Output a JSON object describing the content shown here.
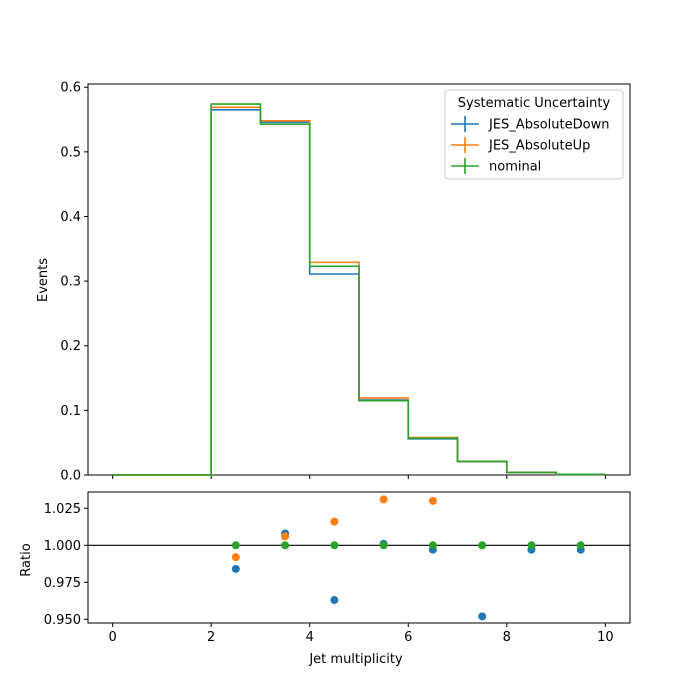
{
  "chart_data": [
    {
      "type": "step",
      "title": "",
      "xlabel": "",
      "ylabel": "Events",
      "xlim": [
        -0.5,
        10.5
      ],
      "ylim": [
        0,
        0.605
      ],
      "xticks": [
        0,
        2,
        4,
        6,
        8,
        10
      ],
      "yticks": [
        0.0,
        0.1,
        0.2,
        0.3,
        0.4,
        0.5,
        0.6
      ],
      "ytick_labels": [
        "0.0",
        "0.1",
        "0.2",
        "0.3",
        "0.4",
        "0.5",
        "0.6"
      ],
      "bin_edges": [
        0,
        1,
        2,
        3,
        4,
        5,
        6,
        7,
        8,
        9,
        10
      ],
      "legend": {
        "title": "Systematic Uncertainty",
        "placement": "top-right"
      },
      "series": [
        {
          "name": "JES_AbsoluteDown",
          "color": "#1f77b4",
          "values": [
            0,
            0,
            0.565,
            0.546,
            0.311,
            0.116,
            0.056,
            0.021,
            0.004,
            0.001
          ]
        },
        {
          "name": "JES_AbsoluteUp",
          "color": "#ff7f0e",
          "values": [
            0,
            0,
            0.569,
            0.548,
            0.329,
            0.119,
            0.058,
            0.021,
            0.004,
            0.001
          ]
        },
        {
          "name": "nominal",
          "color": "#2ca02c",
          "values": [
            0,
            0,
            0.574,
            0.543,
            0.323,
            0.115,
            0.057,
            0.021,
            0.004,
            0.001
          ]
        }
      ]
    },
    {
      "type": "scatter",
      "title": "",
      "xlabel": "Jet multiplicity",
      "ylabel": "Ratio",
      "xlim": [
        -0.5,
        10.5
      ],
      "ylim": [
        0.9475,
        1.036
      ],
      "xticks": [
        0,
        2,
        4,
        6,
        8,
        10
      ],
      "yticks": [
        0.95,
        0.975,
        1.0,
        1.025
      ],
      "ytick_labels": [
        "0.950",
        "0.975",
        "1.000",
        "1.025"
      ],
      "reference_line": 1.0,
      "series": [
        {
          "name": "JES_AbsoluteDown",
          "color": "#1f77b4",
          "x": [
            2.5,
            3.5,
            4.5,
            5.5,
            6.5,
            7.5,
            8.5,
            9.5
          ],
          "y": [
            0.984,
            1.008,
            0.963,
            1.001,
            0.997,
            0.952,
            0.997,
            0.997
          ]
        },
        {
          "name": "JES_AbsoluteUp",
          "color": "#ff7f0e",
          "x": [
            2.5,
            3.5,
            4.5,
            5.5,
            6.5
          ],
          "y": [
            0.992,
            1.006,
            1.016,
            1.031,
            1.03
          ]
        },
        {
          "name": "nominal",
          "color": "#2ca02c",
          "x": [
            2.5,
            3.5,
            4.5,
            5.5,
            6.5,
            7.5,
            8.5,
            9.5
          ],
          "y": [
            1.0,
            1.0,
            1.0,
            1.0,
            1.0,
            1.0,
            1.0,
            1.0
          ]
        }
      ]
    }
  ]
}
